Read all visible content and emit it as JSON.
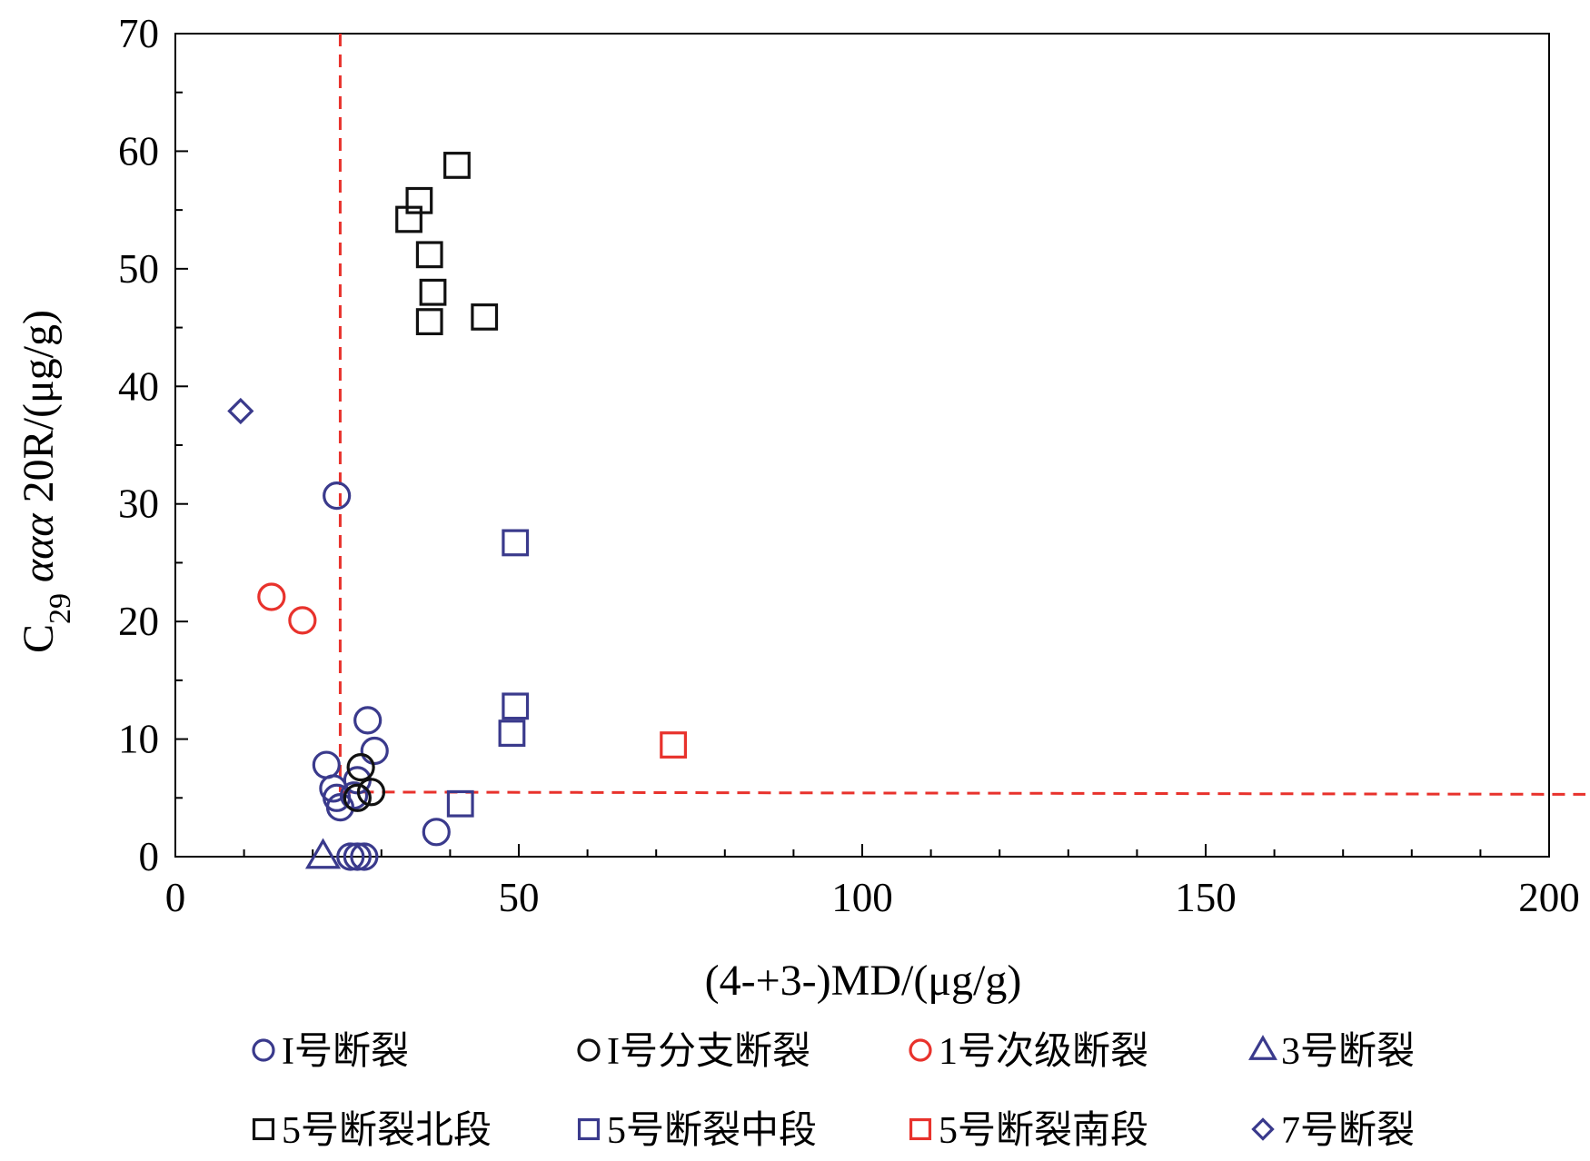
{
  "chart_data": {
    "type": "scatter",
    "xlabel": "(4-+3-)MD/(μg/g)",
    "ylabel": {
      "prefix": "C",
      "subscript": "29",
      "greek": " ααα",
      "suffix": " 20R/(μg/g)"
    },
    "xlim": [
      0,
      200
    ],
    "ylim": [
      0,
      70
    ],
    "x_ticks": [
      0,
      50,
      100,
      150,
      200
    ],
    "y_ticks": [
      0,
      10,
      20,
      30,
      40,
      50,
      60,
      70
    ],
    "grid": false,
    "legend_position": "bottom",
    "reference_lines": [
      {
        "orientation": "vertical",
        "x": 24,
        "y_range": [
          5.5,
          70
        ],
        "color": "#e8322c",
        "style": "dashed"
      },
      {
        "orientation": "horizontal",
        "y_range_start": 5.5,
        "y_end": 5.3,
        "x_range": [
          24,
          200
        ],
        "color": "#e8322c",
        "style": "dashed"
      }
    ],
    "series": [
      {
        "name": "I号断裂",
        "marker": "circle",
        "color": "#3a3a8c",
        "points": [
          [
            23.5,
            30.7
          ],
          [
            28,
            11.6
          ],
          [
            29,
            9
          ],
          [
            22,
            7.8
          ],
          [
            23,
            5.8
          ],
          [
            23.5,
            5
          ],
          [
            24,
            4.2
          ],
          [
            26,
            5.2
          ],
          [
            26.5,
            6.5
          ],
          [
            38,
            2.1
          ],
          [
            25.5,
            0
          ],
          [
            26.5,
            0
          ],
          [
            27.5,
            0
          ]
        ]
      },
      {
        "name": "I号分支断裂",
        "marker": "circle",
        "color": "#111111",
        "points": [
          [
            27,
            7.6
          ],
          [
            26.5,
            5
          ],
          [
            28.5,
            5.5
          ]
        ]
      },
      {
        "name": "1号次级断裂",
        "marker": "circle",
        "color": "#e8322c",
        "points": [
          [
            14,
            22.1
          ],
          [
            18.5,
            20.1
          ]
        ]
      },
      {
        "name": "3号断裂",
        "marker": "triangle",
        "color": "#3a3a8c",
        "points": [
          [
            21.5,
            0
          ]
        ]
      },
      {
        "name": "5号断裂北段",
        "marker": "square",
        "color": "#111111",
        "points": [
          [
            41,
            58.8
          ],
          [
            35.5,
            55.8
          ],
          [
            34,
            54.2
          ],
          [
            37,
            51.2
          ],
          [
            37.5,
            48
          ],
          [
            37,
            45.5
          ],
          [
            45,
            45.9
          ]
        ]
      },
      {
        "name": "5号断裂中段",
        "marker": "square",
        "color": "#3a3a8c",
        "points": [
          [
            49.5,
            26.7
          ],
          [
            49.5,
            12.8
          ],
          [
            49,
            10.5
          ],
          [
            41.5,
            4.5
          ]
        ]
      },
      {
        "name": "5号断裂南段",
        "marker": "square",
        "color": "#e8322c",
        "points": [
          [
            72.5,
            9.5
          ]
        ]
      },
      {
        "name": "7号断裂",
        "marker": "diamond",
        "color": "#3a3a8c",
        "points": [
          [
            9.5,
            37.9
          ]
        ]
      }
    ]
  }
}
